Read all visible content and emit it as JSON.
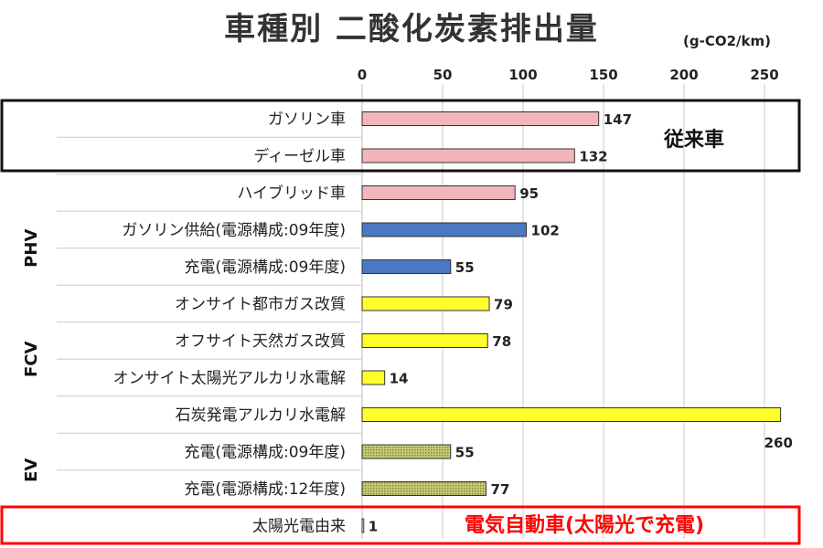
{
  "chart_data": {
    "type": "bar",
    "orientation": "horizontal",
    "title": "車種別 二酸化炭素排出量",
    "unit": "(g-CO2/km)",
    "xlim": [
      0,
      265
    ],
    "ticks": [
      "0",
      "50",
      "100",
      "150",
      "200",
      "250"
    ],
    "tick_values": [
      0,
      50,
      100,
      150,
      200,
      250
    ],
    "grid": true,
    "categories": [
      "ガソリン車",
      "ディーゼル車",
      "ハイブリッド車",
      "ガソリン供給(電源構成:09年度)",
      "充電(電源構成:09年度)",
      "オンサイト都市ガス改質",
      "オフサイト天然ガス改質",
      "オンサイト太陽光アルカリ水電解",
      "石炭発電アルカリ水電解",
      "充電(電源構成:09年度)",
      "充電(電源構成:12年度)",
      "太陽光電由来"
    ],
    "values": [
      147,
      132,
      95,
      102,
      55,
      79,
      78,
      14,
      260,
      55,
      77,
      1
    ],
    "value_labels": [
      "147",
      "132",
      "95",
      "102",
      "55",
      "79",
      "78",
      "14",
      "260",
      "55",
      "77",
      "1"
    ],
    "bar_colors": [
      "#f2b5b9",
      "#f2b5b9",
      "#f2b5b9",
      "#4a78c2",
      "#4a78c2",
      "#ffff2e",
      "#ffff2e",
      "#ffff2e",
      "#ffff2e",
      "#b8bc5a",
      "#b8bc5a",
      "#ffffff"
    ],
    "groups": [
      {
        "label": "PHV",
        "start": 3,
        "end": 4
      },
      {
        "label": "FCV",
        "start": 5,
        "end": 8
      },
      {
        "label": "EV",
        "start": 9,
        "end": 10
      }
    ],
    "callouts": [
      {
        "text": "従来車",
        "color": "#111111"
      },
      {
        "text": "電気自動車(太陽光で充電)",
        "color": "#ff0000"
      }
    ]
  }
}
